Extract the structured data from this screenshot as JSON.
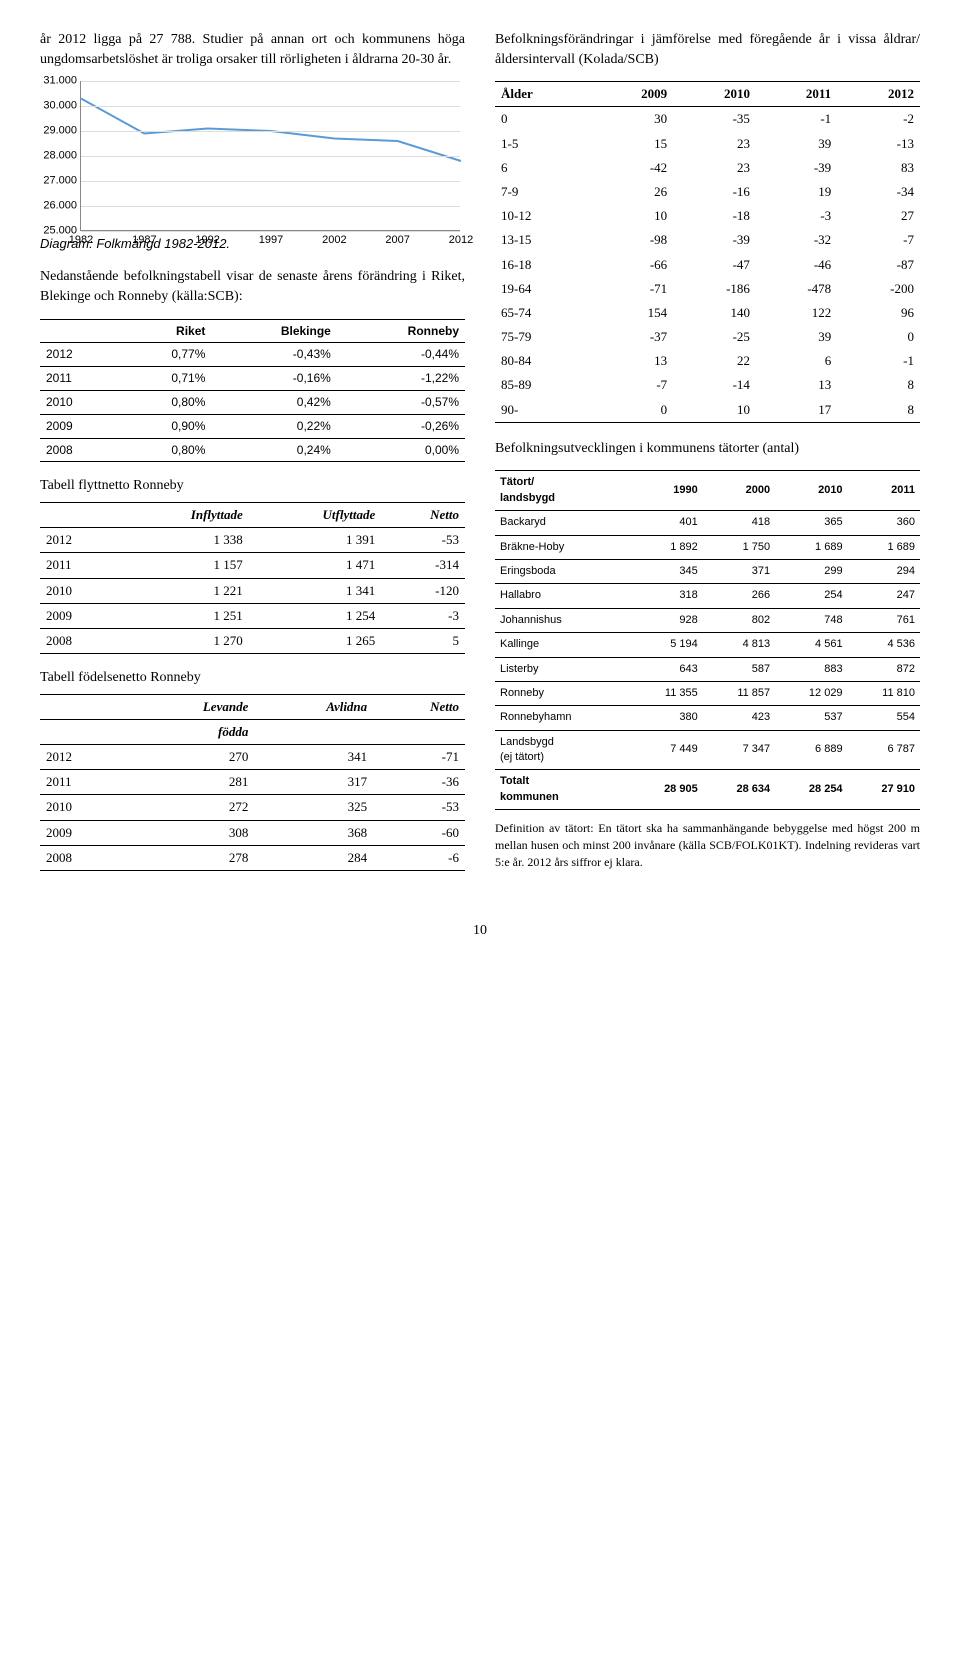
{
  "left": {
    "intro_para": "år 2012 ligga på 27 788. Studier på annan ort och kommunens höga ungdomsarbetslöshet är troliga orsaker till rörligheten i åldrarna 20-30 år.",
    "chart": {
      "type": "line",
      "yticks": [
        "31.000",
        "30.000",
        "29.000",
        "28.000",
        "27.000",
        "26.000",
        "25.000"
      ],
      "yvals": [
        31000,
        30000,
        29000,
        28000,
        27000,
        26000,
        25000
      ],
      "xticks": [
        "1982",
        "1987",
        "1992",
        "1997",
        "2002",
        "2007",
        "2012"
      ],
      "series": [
        30300,
        28900,
        29100,
        29000,
        28700,
        28600,
        27800
      ],
      "line_color": "#5b9bd5",
      "grid_color": "#dddddd",
      "axis_color": "#888888",
      "background_color": "#ffffff",
      "ymin": 25000,
      "ymax": 31000
    },
    "chart_caption": "Diagram: Folkmängd 1982-2012.",
    "pop_table_intro": "Nedanstående befolkningstabell visar de senaste årens förändring i Riket, Blekinge och Ronneby (källa:SCB):",
    "pop_table": {
      "headers": [
        "",
        "Riket",
        "Blekinge",
        "Ronneby"
      ],
      "rows": [
        [
          "2012",
          "0,77%",
          "-0,43%",
          "-0,44%"
        ],
        [
          "2011",
          "0,71%",
          "-0,16%",
          "-1,22%"
        ],
        [
          "2010",
          "0,80%",
          "0,42%",
          "-0,57%"
        ],
        [
          "2009",
          "0,90%",
          "0,22%",
          "-0,26%"
        ],
        [
          "2008",
          "0,80%",
          "0,24%",
          "0,00%"
        ]
      ]
    },
    "flytt_head": "Tabell flyttnetto Ronneby",
    "flytt_table": {
      "headers": [
        "",
        "Inflyttade",
        "Utflyttade",
        "Netto"
      ],
      "rows": [
        [
          "2012",
          "1 338",
          "1 391",
          "-53"
        ],
        [
          "2011",
          "1 157",
          "1 471",
          "-314"
        ],
        [
          "2010",
          "1 221",
          "1 341",
          "-120"
        ],
        [
          "2009",
          "1 251",
          "1 254",
          "-3"
        ],
        [
          "2008",
          "1 270",
          "1 265",
          "5"
        ]
      ]
    },
    "fodelse_head": "Tabell födelsenetto Ronneby",
    "fodelse_table": {
      "headers_line1": [
        "",
        "Levande",
        "Avlidna",
        "Netto"
      ],
      "headers_line2": [
        "",
        "födda",
        "",
        ""
      ],
      "rows": [
        [
          "2012",
          "270",
          "341",
          "-71"
        ],
        [
          "2011",
          "281",
          "317",
          "-36"
        ],
        [
          "2010",
          "272",
          "325",
          "-53"
        ],
        [
          "2009",
          "308",
          "368",
          "-60"
        ],
        [
          "2008",
          "278",
          "284",
          "-6"
        ]
      ]
    }
  },
  "right": {
    "age_intro": "Befolkningsförändringar i jämförelse med föregående år i vissa åldrar/åldersintervall (Kolada/SCB)",
    "age_table": {
      "headers": [
        "Ålder",
        "2009",
        "2010",
        "2011",
        "2012"
      ],
      "rows": [
        [
          "0",
          "30",
          "-35",
          "-1",
          "-2"
        ],
        [
          "1-5",
          "15",
          "23",
          "39",
          "-13"
        ],
        [
          "6",
          "-42",
          "23",
          "-39",
          "83"
        ],
        [
          "7-9",
          "26",
          "-16",
          "19",
          "-34"
        ],
        [
          "10-12",
          "10",
          "-18",
          "-3",
          "27"
        ],
        [
          "13-15",
          "-98",
          "-39",
          "-32",
          "-7"
        ],
        [
          "16-18",
          "-66",
          "-47",
          "-46",
          "-87"
        ],
        [
          "19-64",
          "-71",
          "-186",
          "-478",
          "-200"
        ],
        [
          "65-74",
          "154",
          "140",
          "122",
          "96"
        ],
        [
          "75-79",
          "-37",
          "-25",
          "39",
          "0"
        ],
        [
          "80-84",
          "13",
          "22",
          "6",
          "-1"
        ],
        [
          "85-89",
          "-7",
          "-14",
          "13",
          "8"
        ],
        [
          "90-",
          "0",
          "10",
          "17",
          "8"
        ]
      ]
    },
    "tat_head": "Befolkningsutvecklingen i kommunens tätorter (antal)",
    "tat_table": {
      "headers": [
        "Tätort/\nlandsbygd",
        "1990",
        "2000",
        "2010",
        "2011"
      ],
      "rows": [
        [
          "Backaryd",
          "401",
          "418",
          "365",
          "360"
        ],
        [
          "Bräkne-Hoby",
          "1 892",
          "1 750",
          "1 689",
          "1 689"
        ],
        [
          "Eringsboda",
          "345",
          "371",
          "299",
          "294"
        ],
        [
          "Hallabro",
          "318",
          "266",
          "254",
          "247"
        ],
        [
          "Johannishus",
          "928",
          "802",
          "748",
          "761"
        ],
        [
          "Kallinge",
          "5 194",
          "4 813",
          "4 561",
          "4 536"
        ],
        [
          "Listerby",
          "643",
          "587",
          "883",
          "872"
        ],
        [
          "Ronneby",
          "11 355",
          "11 857",
          "12 029",
          "11 810"
        ],
        [
          "Ronnebyhamn",
          "380",
          "423",
          "537",
          "554"
        ],
        [
          "Landsbygd\n(ej tätort)",
          "7 449",
          "7 347",
          "6 889",
          "6 787"
        ],
        [
          "Totalt\nkommunen",
          "28 905",
          "28 634",
          "28 254",
          "27 910"
        ]
      ]
    },
    "foot_para": "Definition av tätort: En tätort ska ha sammanhängande bebyggelse med högst 200 m mellan husen och minst 200 invånare (källa SCB/FOLK01KT). Indelning revideras vart 5:e år. 2012 års siffror ej klara."
  },
  "page_number": "10"
}
